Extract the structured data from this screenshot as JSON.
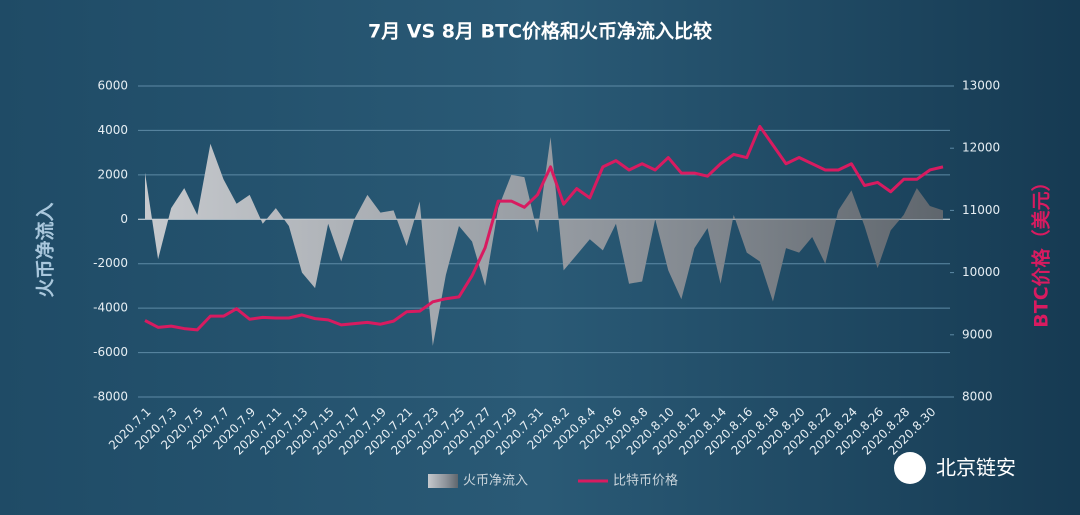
{
  "chart_data": {
    "type": "area-line",
    "title": "7月 VS 8月 BTC价格和火币净流入比较",
    "y_label": "火币净流入",
    "y2_label": "BTC价格（美元）",
    "watermark": "北京链安",
    "categories": [
      "2020.7.1",
      null,
      "2020.7.3",
      null,
      "2020.7.5",
      null,
      "2020.7.7",
      null,
      "2020.7.9",
      null,
      "2020.7.11",
      null,
      "2020.7.13",
      null,
      "2020.7.15",
      null,
      "2020.7.17",
      null,
      "2020.7.19",
      null,
      "2020.7.21",
      null,
      "2020.7.23",
      null,
      "2020.7.25",
      null,
      "2020.7.27",
      null,
      "2020.7.29",
      null,
      "2020.7.31",
      null,
      "2020.8.2",
      null,
      "2020.8.4",
      null,
      "2020.8.6",
      null,
      "2020.8.8",
      null,
      "2020.8.10",
      null,
      "2020.8.12",
      null,
      "2020.8.14",
      null,
      "2020.8.16",
      null,
      "2020.8.18",
      null,
      "2020.8.20",
      null,
      "2020.8.22",
      null,
      "2020.8.24",
      null,
      "2020.8.26",
      null,
      "2020.8.28",
      null,
      "2020.8.30",
      null
    ],
    "series": [
      {
        "name": "火币净流入",
        "color": "#b4b8bd",
        "values": [
          2100,
          -1800,
          500,
          1400,
          200,
          3400,
          1800,
          700,
          1100,
          -200,
          500,
          -300,
          -2400,
          -3100,
          -200,
          -1900,
          0,
          1100,
          300,
          400,
          -1200,
          800,
          -5700,
          -2500,
          -300,
          -1000,
          -3000,
          500,
          2000,
          1900,
          -600,
          3700,
          -2300,
          -1600,
          -900,
          -1400,
          -200,
          -2900,
          -2800,
          0,
          -2300,
          -3600,
          -1300,
          -400,
          -2900,
          200,
          -1500,
          -1900,
          -3700,
          -1300,
          -1500,
          -800,
          -2000,
          400,
          1300,
          -300,
          -2200,
          -500,
          200,
          1400,
          600,
          400
        ]
      },
      {
        "name": "比特币价格",
        "color": "#d81b60",
        "axis": "y2",
        "values": [
          9230,
          9120,
          9140,
          9100,
          9080,
          9300,
          9300,
          9420,
          9250,
          9280,
          9270,
          9270,
          9320,
          9260,
          9240,
          9160,
          9180,
          9200,
          9170,
          9220,
          9370,
          9380,
          9530,
          9580,
          9610,
          9950,
          10400,
          11150,
          11150,
          11050,
          11250,
          11700,
          11100,
          11350,
          11200,
          11700,
          11800,
          11650,
          11750,
          11650,
          11850,
          11600,
          11600,
          11550,
          11750,
          11900,
          11850,
          12350,
          12050,
          11750,
          11850,
          11750,
          11650,
          11650,
          11750,
          11400,
          11450,
          11300,
          11500,
          11500,
          11650,
          11700
        ]
      }
    ],
    "ylim": [
      -8000,
      6000
    ],
    "yticks": [
      -8000,
      -6000,
      -4000,
      -2000,
      0,
      2000,
      4000,
      6000
    ],
    "y2lim": [
      8000,
      13000
    ],
    "y2ticks": [
      8000,
      9000,
      10000,
      11000,
      12000,
      13000
    ],
    "grid": true,
    "legend": "bottom"
  }
}
